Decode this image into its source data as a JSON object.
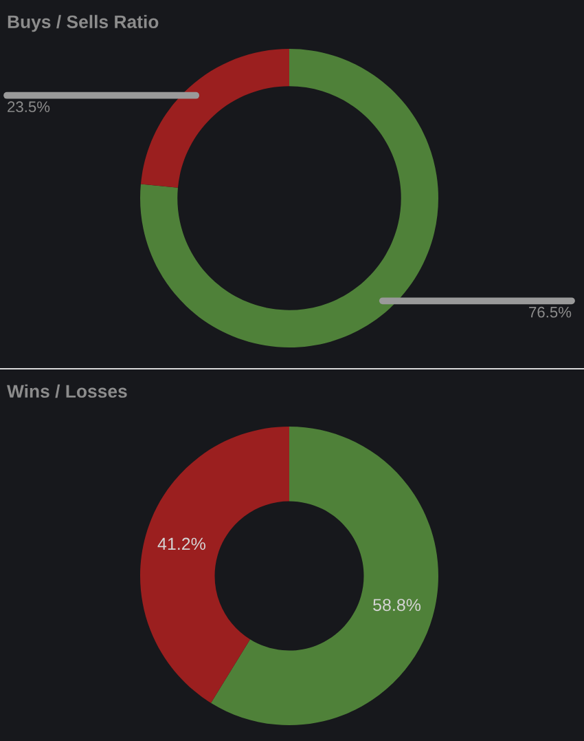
{
  "chart_data": [
    {
      "type": "donut",
      "title": "Buys / Sells Ratio",
      "categories": [
        null,
        null
      ],
      "values": [
        76.5,
        23.5
      ],
      "colors": [
        "#4f8139",
        "#9b1f1f"
      ],
      "value_labels": [
        "76.5%",
        "23.5%"
      ]
    },
    {
      "type": "donut",
      "title": "Wins / Losses",
      "categories": [
        null,
        null
      ],
      "values": [
        58.8,
        41.2
      ],
      "colors": [
        "#4f8139",
        "#9b1f1f"
      ],
      "value_labels": [
        "58.8%",
        "41.2%"
      ]
    }
  ]
}
